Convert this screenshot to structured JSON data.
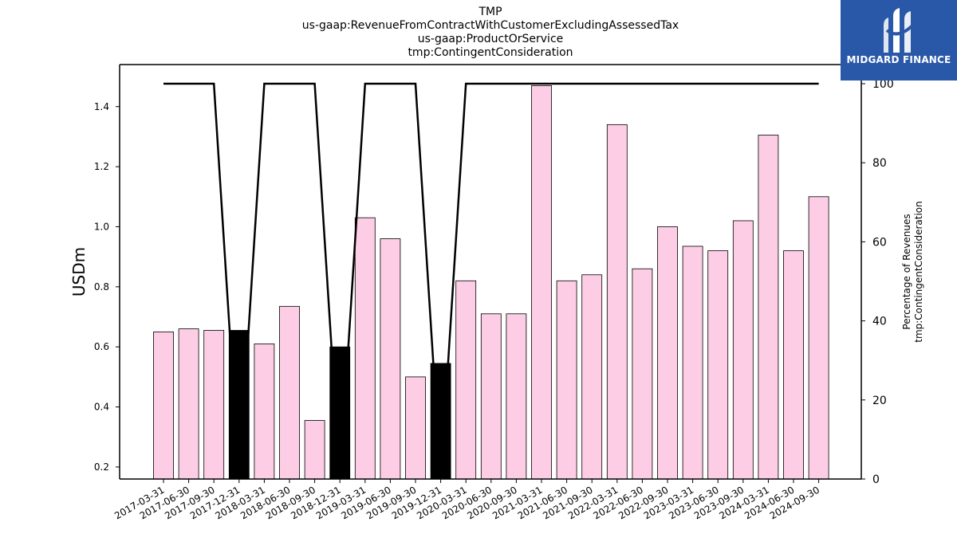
{
  "titles": [
    "TMP",
    "us-gaap:RevenueFromContractWithCustomerExcludingAssessedTax",
    "us-gaap:ProductOrService",
    "tmp:ContingentConsideration"
  ],
  "logo": {
    "text": "MIDGARD FINANCE",
    "color": "#2a58a8"
  },
  "chart_data": {
    "type": "bar",
    "categories": [
      "2017-03-31",
      "2017-06-30",
      "2017-09-30",
      "2017-12-31",
      "2018-03-31",
      "2018-06-30",
      "2018-09-30",
      "2018-12-31",
      "2019-03-31",
      "2019-06-30",
      "2019-09-30",
      "2019-12-31",
      "2020-03-31",
      "2020-06-30",
      "2020-09-30",
      "2021-03-31",
      "2021-06-30",
      "2021-09-30",
      "2022-03-31",
      "2022-06-30",
      "2022-09-30",
      "2023-03-31",
      "2023-06-30",
      "2023-09-30",
      "2024-03-31",
      "2024-06-30",
      "2024-09-30"
    ],
    "values": [
      0.65,
      0.66,
      0.655,
      0.655,
      0.61,
      0.735,
      0.355,
      0.6,
      1.03,
      0.96,
      0.5,
      0.545,
      0.82,
      0.71,
      0.71,
      1.47,
      0.82,
      0.84,
      1.34,
      0.86,
      1.0,
      0.935,
      0.92,
      1.02,
      1.305,
      0.92,
      1.1
    ],
    "bar_colors": [
      "#fccde5",
      "#fccde5",
      "#fccde5",
      "#000000",
      "#fccde5",
      "#fccde5",
      "#fccde5",
      "#000000",
      "#fccde5",
      "#fccde5",
      "#fccde5",
      "#000000",
      "#fccde5",
      "#fccde5",
      "#fccde5",
      "#fccde5",
      "#fccde5",
      "#fccde5",
      "#fccde5",
      "#fccde5",
      "#fccde5",
      "#fccde5",
      "#fccde5",
      "#fccde5",
      "#fccde5",
      "#fccde5",
      "#fccde5"
    ],
    "ylabel": "USDm",
    "ylim": [
      0.16,
      1.54
    ],
    "yticks": [
      0.2,
      0.4,
      0.6,
      0.8,
      1.0,
      1.2,
      1.4
    ],
    "ytick_labels": [
      "0.2",
      "0.4",
      "0.6",
      "0.8",
      "1.0",
      "1.2",
      "1.4"
    ],
    "y2label_lines": [
      "Percentage of Revenues",
      "tmp:ContingentConsideration"
    ],
    "y2lim": [
      0,
      100
    ],
    "y2ticks": [
      0,
      20,
      40,
      60,
      80,
      100
    ],
    "y2tick_labels": [
      "0",
      "20",
      "40",
      "60",
      "80",
      "100"
    ],
    "line_values": [
      100,
      100,
      100,
      0,
      100,
      100,
      100,
      0,
      100,
      100,
      100,
      0,
      100,
      100,
      100,
      100,
      100,
      100,
      100,
      100,
      100,
      100,
      100,
      100,
      100,
      100,
      100
    ],
    "line_color": "#000000",
    "grid": false
  }
}
